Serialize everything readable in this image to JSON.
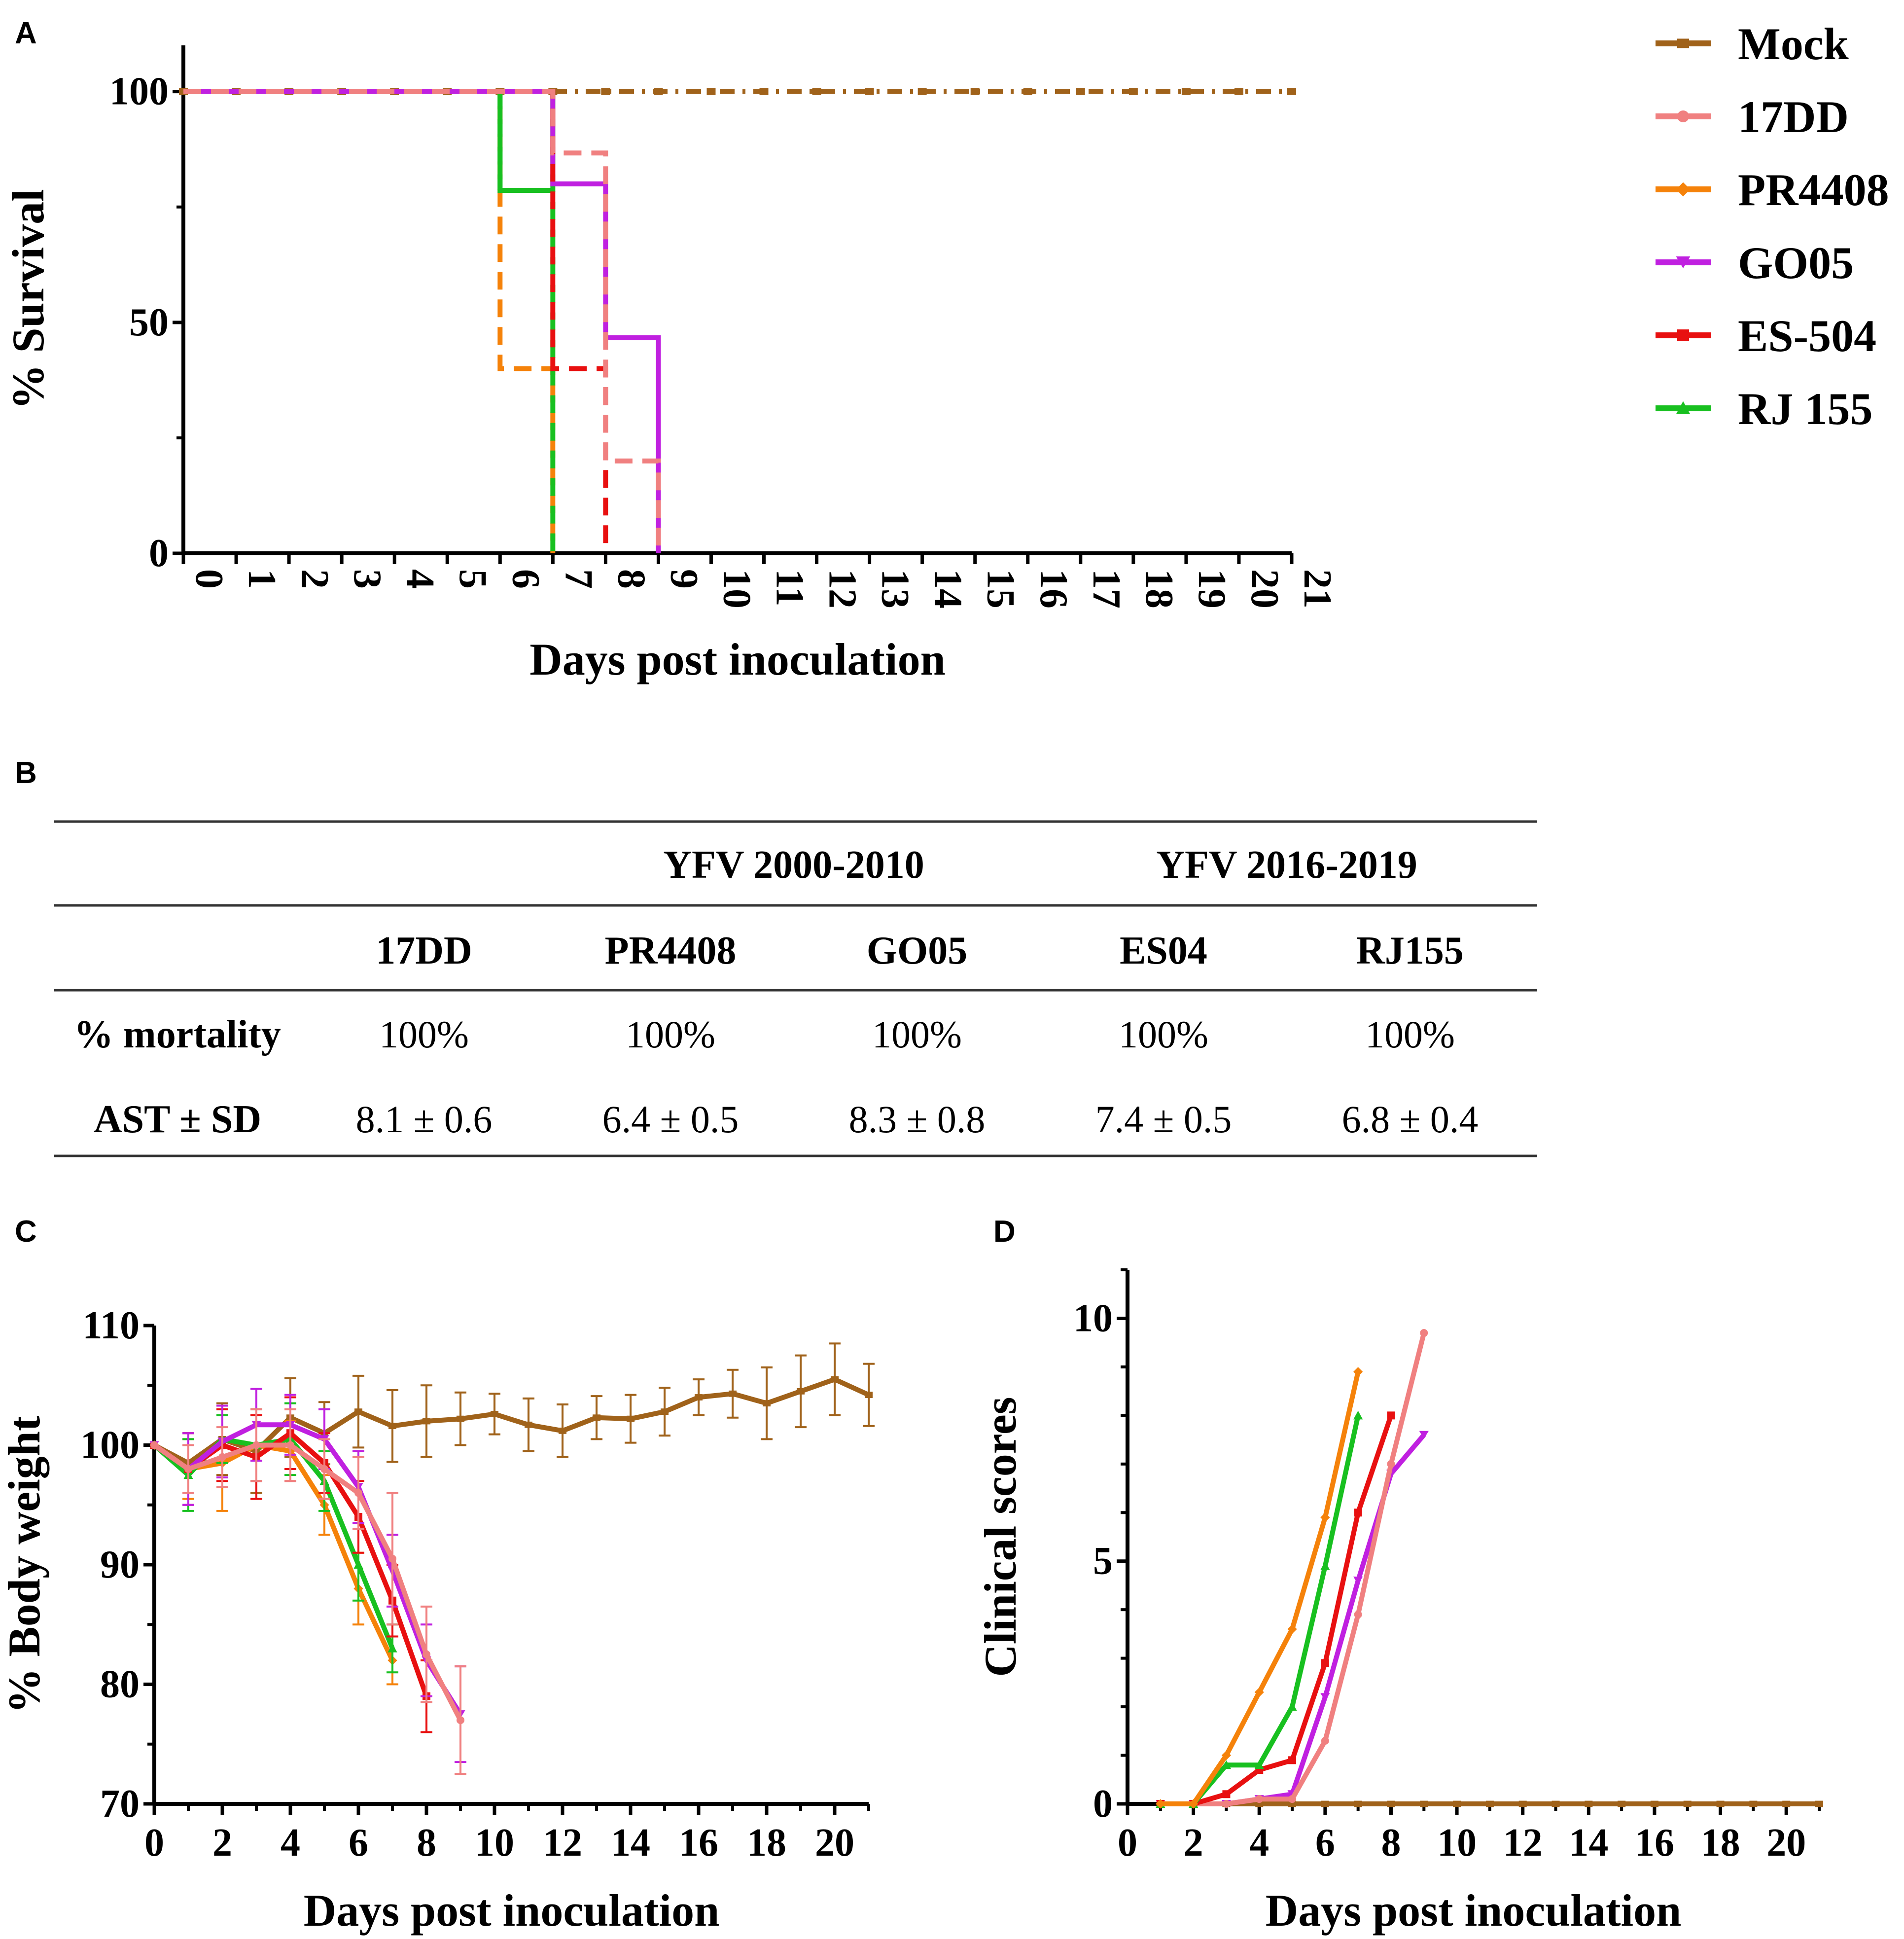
{
  "panels": {
    "A": "A",
    "B": "B",
    "C": "C",
    "D": "D"
  },
  "colors": {
    "Mock": "#A0621A",
    "17DD": "#F08080",
    "PR4408": "#F5820A",
    "GO05": "#C020E0",
    "ES-504": "#E81010",
    "RJ 155": "#18C020"
  },
  "legend": [
    "Mock",
    "17DD",
    "PR4408",
    "GO05",
    "ES-504",
    "RJ 155"
  ],
  "table": {
    "groups": [
      "YFV 2000-2010",
      "YFV 2016-2019"
    ],
    "columns": [
      "17DD",
      "PR4408",
      "GO05",
      "ES04",
      "RJ155"
    ],
    "rows": [
      {
        "label": "% mortality",
        "values": [
          "100%",
          "100%",
          "100%",
          "100%",
          "100%"
        ]
      },
      {
        "label": "AST ± SD",
        "values": [
          "8.1 ± 0.6",
          "6.4 ± 0.5",
          "8.3 ± 0.8",
          "7.4 ± 0.5",
          "6.8 ± 0.4"
        ]
      }
    ]
  },
  "chart_data": [
    {
      "id": "A",
      "type": "line",
      "subtype": "survival-step",
      "xlabel": "Days post inoculation",
      "ylabel": "% Survival",
      "xlim": [
        0,
        21
      ],
      "ylim": [
        0,
        110
      ],
      "xticks": [
        0,
        1,
        2,
        3,
        4,
        5,
        6,
        7,
        8,
        9,
        10,
        11,
        12,
        13,
        14,
        15,
        16,
        17,
        18,
        19,
        20,
        21
      ],
      "yticks": [
        0,
        50,
        100
      ],
      "series": [
        {
          "name": "Mock",
          "x": [
            0,
            21
          ],
          "y": [
            100,
            100
          ],
          "dash": "dashdot"
        },
        {
          "name": "17DD",
          "x": [
            0,
            7,
            7,
            8,
            8,
            9,
            9
          ],
          "y": [
            100,
            100,
            86.7,
            86.7,
            20,
            20,
            0
          ],
          "dash": "dashed"
        },
        {
          "name": "PR4408",
          "x": [
            0,
            6,
            6,
            7,
            7
          ],
          "y": [
            100,
            100,
            40,
            40,
            0
          ],
          "dash": "dashed"
        },
        {
          "name": "GO05",
          "x": [
            0,
            7,
            7,
            8,
            8,
            9,
            9
          ],
          "y": [
            100,
            100,
            80,
            80,
            46.7,
            46.7,
            0
          ],
          "dash": "solid"
        },
        {
          "name": "ES-504",
          "x": [
            0,
            7,
            7,
            8,
            8
          ],
          "y": [
            100,
            100,
            40,
            40,
            0
          ],
          "dash": "dashed"
        },
        {
          "name": "RJ 155",
          "x": [
            0,
            6,
            6,
            7,
            7
          ],
          "y": [
            100,
            100,
            78.6,
            78.6,
            0
          ],
          "dash": "solid-then-dashed"
        }
      ]
    },
    {
      "id": "C",
      "type": "line",
      "xlabel": "Days post inoculation",
      "ylabel": "% Body weight",
      "xlim": [
        0,
        21
      ],
      "ylim": [
        70,
        110
      ],
      "xticks": [
        0,
        2,
        4,
        6,
        8,
        10,
        12,
        14,
        16,
        18,
        20
      ],
      "yticks": [
        70,
        80,
        90,
        100,
        110
      ],
      "series": [
        {
          "name": "Mock",
          "x": [
            0,
            1,
            2,
            3,
            4,
            5,
            6,
            7,
            8,
            9,
            10,
            11,
            12,
            13,
            14,
            15,
            16,
            17,
            18,
            19,
            20,
            21
          ],
          "y": [
            100,
            98.5,
            100.5,
            99.5,
            102.3,
            101,
            102.8,
            101.6,
            102,
            102.2,
            102.6,
            101.7,
            101.2,
            102.3,
            102.2,
            102.8,
            104,
            104.3,
            103.5,
            104.5,
            105.5,
            104.2
          ],
          "err": [
            0,
            2.5,
            3,
            3.5,
            3.3,
            2.6,
            3,
            3,
            3,
            2.2,
            1.7,
            2.2,
            2.2,
            1.8,
            2,
            2,
            1.5,
            2,
            3,
            3,
            3,
            2.6
          ]
        },
        {
          "name": "17DD",
          "x": [
            0,
            1,
            2,
            3,
            4,
            5,
            6,
            7,
            8,
            9
          ],
          "y": [
            100,
            98,
            99,
            100,
            100,
            98,
            96,
            90.5,
            82.5,
            77
          ],
          "err": [
            0,
            2,
            2.5,
            3,
            3,
            2.5,
            3,
            5.5,
            4,
            4.5
          ]
        },
        {
          "name": "PR4408",
          "x": [
            0,
            1,
            2,
            3,
            4,
            5,
            6,
            7
          ],
          "y": [
            100,
            98,
            98.5,
            100,
            99.5,
            95,
            88,
            82
          ],
          "err": [
            0,
            2.5,
            4,
            3,
            2.5,
            2.5,
            3,
            2
          ]
        },
        {
          "name": "GO05",
          "x": [
            0,
            1,
            2,
            3,
            4,
            5,
            6,
            7,
            8,
            9
          ],
          "y": [
            100,
            98,
            100.3,
            101.7,
            101.7,
            100.5,
            96.5,
            89.5,
            82,
            77.5
          ],
          "err": [
            0,
            3,
            3,
            3,
            2.5,
            2.5,
            3,
            3,
            3,
            4
          ]
        },
        {
          "name": "ES-504",
          "x": [
            0,
            1,
            2,
            3,
            4,
            5,
            6,
            7,
            8
          ],
          "y": [
            100,
            98,
            100,
            99,
            101,
            98.5,
            94,
            87,
            79
          ],
          "err": [
            0,
            3,
            3,
            3.5,
            3,
            2.5,
            3,
            3,
            3
          ]
        },
        {
          "name": "RJ 155",
          "x": [
            0,
            1,
            2,
            3,
            4,
            5,
            6,
            7
          ],
          "y": [
            100,
            97.5,
            100.5,
            100,
            100.5,
            97,
            90,
            83
          ],
          "err": [
            0,
            3,
            2,
            3,
            3,
            2.5,
            3,
            2
          ]
        }
      ]
    },
    {
      "id": "D",
      "type": "line",
      "xlabel": "Days post inoculation",
      "ylabel": "Clinical scores",
      "xlim": [
        0,
        21
      ],
      "ylim": [
        0,
        11
      ],
      "xticks": [
        0,
        2,
        4,
        6,
        8,
        10,
        12,
        14,
        16,
        18,
        20
      ],
      "yticks": [
        0,
        5,
        10
      ],
      "series": [
        {
          "name": "Mock",
          "x": [
            1,
            2,
            3,
            4,
            5,
            6,
            7,
            8,
            9,
            10,
            11,
            12,
            13,
            14,
            15,
            16,
            17,
            18,
            19,
            20,
            21
          ],
          "y": [
            0,
            0,
            0,
            0,
            0,
            0,
            0,
            0,
            0,
            0,
            0,
            0,
            0,
            0,
            0,
            0,
            0,
            0,
            0,
            0,
            0
          ]
        },
        {
          "name": "17DD",
          "x": [
            1,
            2,
            3,
            4,
            5,
            6,
            7,
            8,
            9
          ],
          "y": [
            0,
            0,
            0,
            0.1,
            0.1,
            1.3,
            3.9,
            7,
            9.7
          ]
        },
        {
          "name": "PR4408",
          "x": [
            1,
            2,
            3,
            4,
            5,
            6,
            7
          ],
          "y": [
            0,
            0,
            1,
            2.3,
            3.6,
            5.9,
            8.9
          ]
        },
        {
          "name": "GO05",
          "x": [
            1,
            2,
            3,
            4,
            5,
            6,
            7,
            8,
            9
          ],
          "y": [
            0,
            0,
            0,
            0.1,
            0.2,
            2.2,
            4.6,
            6.8,
            7.6
          ]
        },
        {
          "name": "ES-504",
          "x": [
            1,
            2,
            3,
            4,
            5,
            6,
            7,
            8
          ],
          "y": [
            0,
            0,
            0.2,
            0.7,
            0.9,
            2.9,
            6,
            8
          ]
        },
        {
          "name": "RJ 155",
          "x": [
            1,
            2,
            3,
            4,
            5,
            6,
            7
          ],
          "y": [
            0,
            0,
            0.8,
            0.8,
            2,
            4.9,
            8
          ]
        }
      ]
    }
  ]
}
